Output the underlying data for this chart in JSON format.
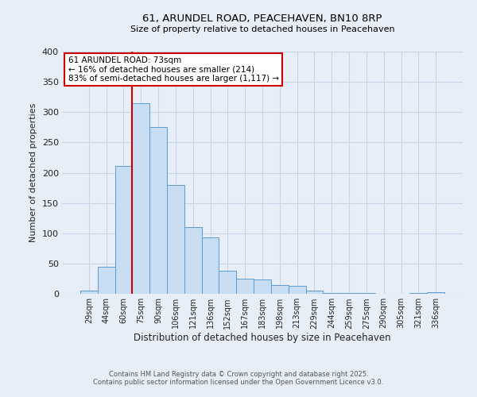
{
  "title": "61, ARUNDEL ROAD, PEACEHAVEN, BN10 8RP",
  "subtitle": "Size of property relative to detached houses in Peacehaven",
  "xlabel": "Distribution of detached houses by size in Peacehaven",
  "ylabel": "Number of detached properties",
  "bar_labels": [
    "29sqm",
    "44sqm",
    "60sqm",
    "75sqm",
    "90sqm",
    "106sqm",
    "121sqm",
    "136sqm",
    "152sqm",
    "167sqm",
    "183sqm",
    "198sqm",
    "213sqm",
    "229sqm",
    "244sqm",
    "259sqm",
    "275sqm",
    "290sqm",
    "305sqm",
    "321sqm",
    "336sqm"
  ],
  "bar_heights": [
    5,
    44,
    211,
    315,
    275,
    180,
    110,
    93,
    38,
    25,
    24,
    15,
    13,
    5,
    1,
    1,
    1,
    0,
    0,
    1,
    2
  ],
  "bar_color": "#c9ddf2",
  "bar_edge_color": "#5b9bd5",
  "grid_color": "#c8d4e8",
  "bg_color": "#e8eef8",
  "red_line_color": "#cc0000",
  "red_line_index": 3,
  "annotation_line1": "61 ARUNDEL ROAD: 73sqm",
  "annotation_line2": "← 16% of detached houses are smaller (214)",
  "annotation_line3": "83% of semi-detached houses are larger (1,117) →",
  "annotation_box_color": "#cc0000",
  "footer_line1": "Contains HM Land Registry data © Crown copyright and database right 2025.",
  "footer_line2": "Contains public sector information licensed under the Open Government Licence v3.0.",
  "ylim": [
    0,
    400
  ],
  "yticks": [
    0,
    50,
    100,
    150,
    200,
    250,
    300,
    350,
    400
  ]
}
